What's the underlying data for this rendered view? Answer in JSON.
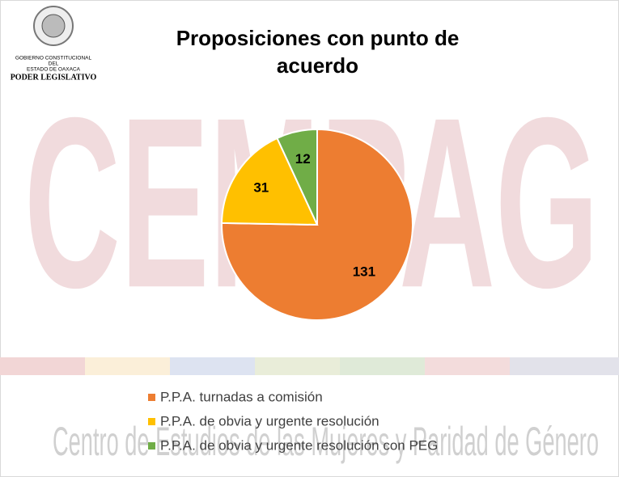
{
  "logo": {
    "lines": [
      "GOBIERNO CONSTITUCIONAL",
      "DEL",
      "ESTADO DE OAXACA"
    ],
    "name": "PODER LEGISLATIVO"
  },
  "watermark": {
    "title": "CEMPAG",
    "subtitle": "Centro de Estudios de las Mujeres y Paridad de Género"
  },
  "chart_data": {
    "type": "pie",
    "title": "Proposiciones con punto de acuerdo",
    "categories": [
      "P.P.A. turnadas a comisión",
      "P.P.A. de obvia y urgente resolución",
      "P.P.A. de obvia y urgente resolución con PEG"
    ],
    "values": [
      131,
      31,
      12
    ],
    "colors": [
      "#ED7D31",
      "#FFC000",
      "#70AD47"
    ],
    "legend": "bottom"
  }
}
